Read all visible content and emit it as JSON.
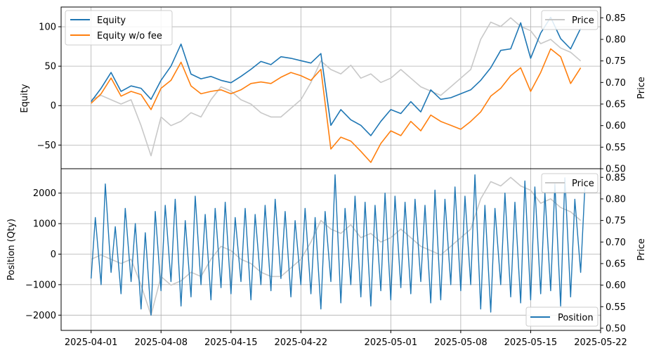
{
  "colors": {
    "equity": "#1f77b4",
    "equity_wo_fee": "#ff7f0e",
    "price": "#c8c8c8",
    "position": "#1f77b4",
    "grid": "#b0b0b0"
  },
  "chart_data": [
    {
      "type": "line",
      "panel": "top",
      "xlabel": "",
      "ylabel": "Equity",
      "y2label": "Price",
      "ylim": [
        -80,
        125
      ],
      "y2lim": [
        0.5,
        0.875
      ],
      "xlim": [
        "2025-03-29",
        "2025-05-22"
      ],
      "yticks": [
        "100",
        "50",
        "0",
        "−50"
      ],
      "y2ticks": [
        "0.85",
        "0.80",
        "0.75",
        "0.70",
        "0.65",
        "0.60",
        "0.55",
        "0.50"
      ],
      "grid": true,
      "legend": {
        "placement": "upper-left",
        "entries": [
          "Equity",
          "Equity w/o fee"
        ]
      },
      "legend2": {
        "placement": "upper-right",
        "entries": [
          "Price"
        ]
      },
      "series": [
        {
          "name": "Equity",
          "axis": "left",
          "x": [
            "2025-04-01",
            "2025-04-02",
            "2025-04-03",
            "2025-04-04",
            "2025-04-05",
            "2025-04-06",
            "2025-04-07",
            "2025-04-08",
            "2025-04-09",
            "2025-04-10",
            "2025-04-11",
            "2025-04-12",
            "2025-04-13",
            "2025-04-14",
            "2025-04-15",
            "2025-04-16",
            "2025-04-17",
            "2025-04-18",
            "2025-04-19",
            "2025-04-20",
            "2025-04-21",
            "2025-04-22",
            "2025-04-23",
            "2025-04-24",
            "2025-04-25",
            "2025-04-26",
            "2025-04-27",
            "2025-04-28",
            "2025-04-29",
            "2025-04-30",
            "2025-05-01",
            "2025-05-02",
            "2025-05-03",
            "2025-05-04",
            "2025-05-05",
            "2025-05-06",
            "2025-05-07",
            "2025-05-08",
            "2025-05-09",
            "2025-05-10",
            "2025-05-11",
            "2025-05-12",
            "2025-05-13",
            "2025-05-14",
            "2025-05-15",
            "2025-05-16",
            "2025-05-17",
            "2025-05-18",
            "2025-05-19",
            "2025-05-20"
          ],
          "values": [
            5,
            22,
            42,
            18,
            25,
            22,
            8,
            32,
            50,
            78,
            40,
            34,
            37,
            32,
            29,
            37,
            46,
            56,
            52,
            62,
            60,
            57,
            54,
            66,
            -25,
            -5,
            -18,
            -25,
            -38,
            -20,
            -5,
            -10,
            5,
            -8,
            20,
            8,
            10,
            15,
            20,
            32,
            48,
            70,
            72,
            105,
            60,
            92,
            112,
            85,
            72,
            98
          ]
        },
        {
          "name": "Equity w/o fee",
          "axis": "left",
          "x": [
            "2025-04-01",
            "2025-04-02",
            "2025-04-03",
            "2025-04-04",
            "2025-04-05",
            "2025-04-06",
            "2025-04-07",
            "2025-04-08",
            "2025-04-09",
            "2025-04-10",
            "2025-04-11",
            "2025-04-12",
            "2025-04-13",
            "2025-04-14",
            "2025-04-15",
            "2025-04-16",
            "2025-04-17",
            "2025-04-18",
            "2025-04-19",
            "2025-04-20",
            "2025-04-21",
            "2025-04-22",
            "2025-04-23",
            "2025-04-24",
            "2025-04-25",
            "2025-04-26",
            "2025-04-27",
            "2025-04-28",
            "2025-04-29",
            "2025-04-30",
            "2025-05-01",
            "2025-05-02",
            "2025-05-03",
            "2025-05-04",
            "2025-05-05",
            "2025-05-06",
            "2025-05-07",
            "2025-05-08",
            "2025-05-09",
            "2025-05-10",
            "2025-05-11",
            "2025-05-12",
            "2025-05-13",
            "2025-05-14",
            "2025-05-15",
            "2025-05-16",
            "2025-05-17",
            "2025-05-18",
            "2025-05-19",
            "2025-05-20"
          ],
          "values": [
            3,
            15,
            35,
            12,
            18,
            14,
            -5,
            22,
            32,
            55,
            25,
            15,
            18,
            20,
            15,
            20,
            28,
            30,
            28,
            36,
            42,
            38,
            32,
            46,
            -55,
            -40,
            -45,
            -58,
            -72,
            -48,
            -32,
            -38,
            -20,
            -32,
            -12,
            -20,
            -25,
            -30,
            -20,
            -8,
            12,
            22,
            38,
            48,
            18,
            42,
            72,
            62,
            28,
            48
          ]
        },
        {
          "name": "Price",
          "axis": "right",
          "x": [
            "2025-04-01",
            "2025-04-02",
            "2025-04-03",
            "2025-04-04",
            "2025-04-05",
            "2025-04-06",
            "2025-04-07",
            "2025-04-08",
            "2025-04-09",
            "2025-04-10",
            "2025-04-11",
            "2025-04-12",
            "2025-04-13",
            "2025-04-14",
            "2025-04-15",
            "2025-04-16",
            "2025-04-17",
            "2025-04-18",
            "2025-04-19",
            "2025-04-20",
            "2025-04-21",
            "2025-04-22",
            "2025-04-23",
            "2025-04-24",
            "2025-04-25",
            "2025-04-26",
            "2025-04-27",
            "2025-04-28",
            "2025-04-29",
            "2025-04-30",
            "2025-05-01",
            "2025-05-02",
            "2025-05-03",
            "2025-05-04",
            "2025-05-05",
            "2025-05-06",
            "2025-05-07",
            "2025-05-08",
            "2025-05-09",
            "2025-05-10",
            "2025-05-11",
            "2025-05-12",
            "2025-05-13",
            "2025-05-14",
            "2025-05-15",
            "2025-05-16",
            "2025-05-17",
            "2025-05-18",
            "2025-05-19",
            "2025-05-20"
          ],
          "values": [
            0.66,
            0.67,
            0.66,
            0.65,
            0.66,
            0.6,
            0.53,
            0.62,
            0.6,
            0.61,
            0.63,
            0.62,
            0.66,
            0.69,
            0.68,
            0.66,
            0.65,
            0.63,
            0.62,
            0.62,
            0.64,
            0.66,
            0.7,
            0.75,
            0.73,
            0.72,
            0.74,
            0.71,
            0.72,
            0.7,
            0.71,
            0.73,
            0.71,
            0.69,
            0.68,
            0.67,
            0.69,
            0.71,
            0.73,
            0.8,
            0.84,
            0.83,
            0.85,
            0.83,
            0.82,
            0.79,
            0.8,
            0.78,
            0.77,
            0.75
          ]
        }
      ]
    },
    {
      "type": "line",
      "panel": "bottom",
      "xlabel": "",
      "ylabel": "Position (Qty)",
      "y2label": "Price",
      "ylim": [
        -2500,
        2800
      ],
      "y2lim": [
        0.495,
        0.87
      ],
      "xlim": [
        "2025-03-29",
        "2025-05-22"
      ],
      "yticks": [
        "2000",
        "1000",
        "0",
        "−1000",
        "−2000"
      ],
      "y2ticks": [
        "0.85",
        "0.80",
        "0.75",
        "0.70",
        "0.65",
        "0.60",
        "0.55",
        "0.50"
      ],
      "xticks": [
        "2025-04-01",
        "2025-04-08",
        "2025-04-15",
        "2025-04-22",
        "2025-05-01",
        "2025-05-08",
        "2025-05-15",
        "2025-05-22"
      ],
      "grid": true,
      "legend": {
        "placement": "lower-right",
        "entries": [
          "Position"
        ]
      },
      "legend2": {
        "placement": "upper-right",
        "entries": [
          "Price"
        ]
      },
      "series": [
        {
          "name": "Position",
          "axis": "left",
          "x": [
            "2025-04-01",
            "2025-04-01",
            "2025-04-02",
            "2025-04-02",
            "2025-04-03",
            "2025-04-03",
            "2025-04-04",
            "2025-04-04",
            "2025-04-05",
            "2025-04-05",
            "2025-04-06",
            "2025-04-06",
            "2025-04-07",
            "2025-04-07",
            "2025-04-08",
            "2025-04-08",
            "2025-04-09",
            "2025-04-09",
            "2025-04-10",
            "2025-04-10",
            "2025-04-11",
            "2025-04-11",
            "2025-04-12",
            "2025-04-12",
            "2025-04-13",
            "2025-04-13",
            "2025-04-14",
            "2025-04-14",
            "2025-04-15",
            "2025-04-15",
            "2025-04-16",
            "2025-04-16",
            "2025-04-17",
            "2025-04-17",
            "2025-04-18",
            "2025-04-18",
            "2025-04-19",
            "2025-04-19",
            "2025-04-20",
            "2025-04-20",
            "2025-04-21",
            "2025-04-21",
            "2025-04-22",
            "2025-04-22",
            "2025-04-23",
            "2025-04-23",
            "2025-04-24",
            "2025-04-24",
            "2025-04-25",
            "2025-04-25",
            "2025-04-26",
            "2025-04-26",
            "2025-04-27",
            "2025-04-27",
            "2025-04-28",
            "2025-04-28",
            "2025-04-29",
            "2025-04-29",
            "2025-04-30",
            "2025-04-30",
            "2025-05-01",
            "2025-05-01",
            "2025-05-02",
            "2025-05-02",
            "2025-05-03",
            "2025-05-03",
            "2025-05-04",
            "2025-05-04",
            "2025-05-05",
            "2025-05-05",
            "2025-05-06",
            "2025-05-06",
            "2025-05-07",
            "2025-05-07",
            "2025-05-08",
            "2025-05-08",
            "2025-05-09",
            "2025-05-09",
            "2025-05-10",
            "2025-05-10",
            "2025-05-11",
            "2025-05-11",
            "2025-05-12",
            "2025-05-12",
            "2025-05-13",
            "2025-05-13",
            "2025-05-14",
            "2025-05-14",
            "2025-05-15",
            "2025-05-15",
            "2025-05-16",
            "2025-05-16",
            "2025-05-17",
            "2025-05-17",
            "2025-05-18",
            "2025-05-18",
            "2025-05-19",
            "2025-05-19",
            "2025-05-20",
            "2025-05-20"
          ],
          "values": [
            -800,
            1200,
            -1000,
            2300,
            -600,
            900,
            -1300,
            1500,
            -900,
            1000,
            -1800,
            700,
            -2000,
            1400,
            -1200,
            1600,
            -900,
            1800,
            -1700,
            1100,
            -1400,
            1900,
            -1000,
            1300,
            -1500,
            1500,
            -1100,
            1700,
            -1300,
            1200,
            -900,
            1500,
            -1500,
            1300,
            -1000,
            1600,
            -1200,
            1800,
            -800,
            1400,
            -1400,
            1100,
            -1000,
            1500,
            -1300,
            1200,
            -1800,
            1400,
            -900,
            2600,
            -1600,
            1500,
            -1000,
            1900,
            -1400,
            1700,
            -1700,
            1600,
            -1200,
            2000,
            -1500,
            1900,
            -1100,
            1700,
            -1300,
            1800,
            -900,
            1600,
            -1600,
            2100,
            -1500,
            1800,
            -1000,
            2200,
            -1200,
            1900,
            -1000,
            2600,
            -1800,
            1600,
            -1900,
            1500,
            -1000,
            2000,
            -1400,
            1700,
            -1600,
            2400,
            -1500,
            2200,
            -1300,
            2000,
            -1200,
            2300,
            -1700,
            2500,
            -1400,
            1800,
            -600,
            2200
          ]
        },
        {
          "name": "Price",
          "axis": "right",
          "x": [
            "2025-04-01",
            "2025-04-02",
            "2025-04-03",
            "2025-04-04",
            "2025-04-05",
            "2025-04-06",
            "2025-04-07",
            "2025-04-08",
            "2025-04-09",
            "2025-04-10",
            "2025-04-11",
            "2025-04-12",
            "2025-04-13",
            "2025-04-14",
            "2025-04-15",
            "2025-04-16",
            "2025-04-17",
            "2025-04-18",
            "2025-04-19",
            "2025-04-20",
            "2025-04-21",
            "2025-04-22",
            "2025-04-23",
            "2025-04-24",
            "2025-04-25",
            "2025-04-26",
            "2025-04-27",
            "2025-04-28",
            "2025-04-29",
            "2025-04-30",
            "2025-05-01",
            "2025-05-02",
            "2025-05-03",
            "2025-05-04",
            "2025-05-05",
            "2025-05-06",
            "2025-05-07",
            "2025-05-08",
            "2025-05-09",
            "2025-05-10",
            "2025-05-11",
            "2025-05-12",
            "2025-05-13",
            "2025-05-14",
            "2025-05-15",
            "2025-05-16",
            "2025-05-17",
            "2025-05-18",
            "2025-05-19",
            "2025-05-20"
          ],
          "values": [
            0.66,
            0.67,
            0.66,
            0.65,
            0.66,
            0.6,
            0.53,
            0.62,
            0.6,
            0.61,
            0.63,
            0.62,
            0.66,
            0.69,
            0.68,
            0.66,
            0.65,
            0.63,
            0.62,
            0.62,
            0.64,
            0.66,
            0.7,
            0.75,
            0.73,
            0.72,
            0.74,
            0.71,
            0.72,
            0.7,
            0.71,
            0.73,
            0.71,
            0.69,
            0.68,
            0.67,
            0.69,
            0.71,
            0.73,
            0.8,
            0.84,
            0.83,
            0.85,
            0.83,
            0.82,
            0.79,
            0.8,
            0.78,
            0.77,
            0.75
          ]
        }
      ]
    }
  ]
}
